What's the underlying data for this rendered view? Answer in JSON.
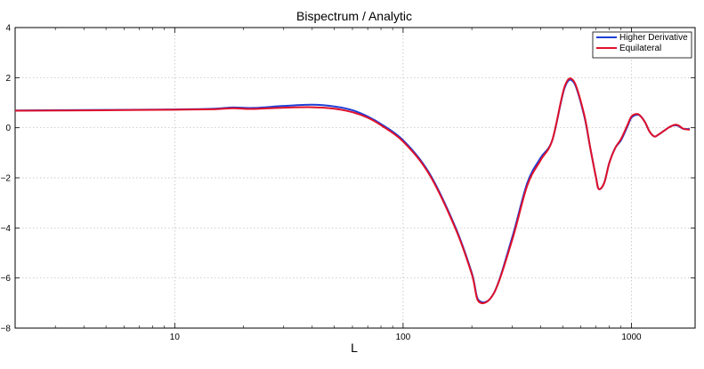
{
  "chart_data": {
    "type": "line",
    "title": "Bispectrum / Analytic",
    "xlabel": "L",
    "ylabel": "",
    "xscale": "log",
    "xlim": [
      2,
      1900
    ],
    "ylim": [
      -8,
      4
    ],
    "xticks": [
      10,
      100,
      1000
    ],
    "xtick_labels": [
      "10",
      "100",
      "1000"
    ],
    "yticks": [
      -8,
      -6,
      -4,
      -2,
      0,
      2,
      4
    ],
    "ytick_labels": [
      "−8",
      "−6",
      "−4",
      "−2",
      "0",
      "2",
      "4"
    ],
    "grid": true,
    "legend_position": "top-right",
    "series": [
      {
        "name": "Higher Derivative",
        "color": "#1f3fd6",
        "x": [
          2,
          5,
          10,
          15,
          18,
          22,
          30,
          40,
          50,
          60,
          70,
          80,
          100,
          130,
          170,
          200,
          215,
          250,
          300,
          350,
          400,
          450,
          510,
          560,
          620,
          660,
          700,
          720,
          760,
          800,
          850,
          900,
          960,
          1000,
          1060,
          1100,
          1150,
          1200,
          1260,
          1300,
          1350,
          1400,
          1450,
          1500,
          1550,
          1600,
          1650,
          1700,
          1800
        ],
        "values": [
          0.69,
          0.71,
          0.73,
          0.76,
          0.81,
          0.79,
          0.87,
          0.92,
          0.85,
          0.7,
          0.45,
          0.15,
          -0.5,
          -1.8,
          -4.0,
          -5.8,
          -6.9,
          -6.6,
          -4.4,
          -2.2,
          -1.2,
          -0.5,
          1.6,
          1.8,
          0.5,
          -0.8,
          -2.0,
          -2.45,
          -2.2,
          -1.4,
          -0.8,
          -0.5,
          0.05,
          0.4,
          0.52,
          0.45,
          0.2,
          -0.15,
          -0.35,
          -0.3,
          -0.2,
          -0.1,
          0.0,
          0.07,
          0.1,
          0.08,
          0.0,
          -0.05,
          -0.05
        ]
      },
      {
        "name": "Equilateral",
        "color": "#e0102a",
        "x": [
          2,
          5,
          10,
          15,
          18,
          22,
          30,
          40,
          50,
          60,
          70,
          80,
          100,
          130,
          170,
          200,
          215,
          250,
          300,
          350,
          400,
          450,
          510,
          560,
          620,
          660,
          700,
          720,
          760,
          800,
          850,
          900,
          960,
          1000,
          1060,
          1100,
          1150,
          1200,
          1260,
          1300,
          1350,
          1400,
          1450,
          1500,
          1550,
          1600,
          1650,
          1700,
          1800
        ],
        "values": [
          0.68,
          0.7,
          0.72,
          0.74,
          0.78,
          0.75,
          0.8,
          0.82,
          0.76,
          0.62,
          0.4,
          0.1,
          -0.55,
          -1.85,
          -4.05,
          -5.85,
          -6.95,
          -6.6,
          -4.5,
          -2.3,
          -1.3,
          -0.5,
          1.65,
          1.85,
          0.55,
          -0.8,
          -2.0,
          -2.45,
          -2.2,
          -1.4,
          -0.8,
          -0.45,
          0.1,
          0.45,
          0.55,
          0.45,
          0.2,
          -0.15,
          -0.35,
          -0.3,
          -0.2,
          -0.1,
          0.0,
          0.07,
          0.12,
          0.1,
          0.02,
          -0.05,
          -0.08
        ]
      }
    ]
  }
}
